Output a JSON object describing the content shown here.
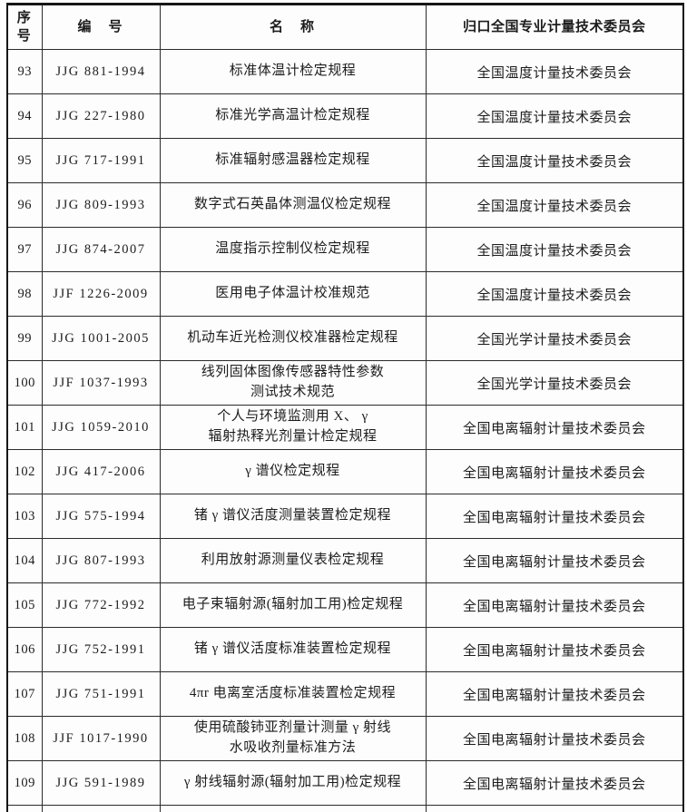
{
  "table": {
    "headers": {
      "serial": "序\n号",
      "code": "编　号",
      "name": "名　称",
      "committee": "归口全国专业计量技术委员会"
    },
    "rows": [
      {
        "no": "93",
        "code": "JJG 881-1994",
        "name": "标准体温计检定规程",
        "committee": "全国温度计量技术委员会"
      },
      {
        "no": "94",
        "code": "JJG 227-1980",
        "name": "标准光学高温计检定规程",
        "committee": "全国温度计量技术委员会"
      },
      {
        "no": "95",
        "code": "JJG 717-1991",
        "name": "标准辐射感温器检定规程",
        "committee": "全国温度计量技术委员会"
      },
      {
        "no": "96",
        "code": "JJG 809-1993",
        "name": "数字式石英晶体测温仪检定规程",
        "committee": "全国温度计量技术委员会"
      },
      {
        "no": "97",
        "code": "JJG 874-2007",
        "name": "温度指示控制仪检定规程",
        "committee": "全国温度计量技术委员会"
      },
      {
        "no": "98",
        "code": "JJF 1226-2009",
        "name": "医用电子体温计校准规范",
        "committee": "全国温度计量技术委员会"
      },
      {
        "no": "99",
        "code": "JJG 1001-2005",
        "name": "机动车近光检测仪校准器检定规程",
        "committee": "全国光学计量技术委员会"
      },
      {
        "no": "100",
        "code": "JJF 1037-1993",
        "name": "线列固体图像传感器特性参数\n测试技术规范",
        "committee": "全国光学计量技术委员会"
      },
      {
        "no": "101",
        "code": "JJG 1059-2010",
        "name": "个人与环境监测用 X、 γ\n辐射热释光剂量计检定规程",
        "committee": "全国电离辐射计量技术委员会"
      },
      {
        "no": "102",
        "code": "JJG 417-2006",
        "name": "γ 谱仪检定规程",
        "committee": "全国电离辐射计量技术委员会"
      },
      {
        "no": "103",
        "code": "JJG 575-1994",
        "name": "锗 γ 谱仪活度测量装置检定规程",
        "committee": "全国电离辐射计量技术委员会"
      },
      {
        "no": "104",
        "code": "JJG 807-1993",
        "name": "利用放射源测量仪表检定规程",
        "committee": "全国电离辐射计量技术委员会"
      },
      {
        "no": "105",
        "code": "JJG 772-1992",
        "name": "电子束辐射源(辐射加工用)检定规程",
        "committee": "全国电离辐射计量技术委员会"
      },
      {
        "no": "106",
        "code": "JJG 752-1991",
        "name": "锗 γ 谱仪活度标准装置检定规程",
        "committee": "全国电离辐射计量技术委员会"
      },
      {
        "no": "107",
        "code": "JJG 751-1991",
        "name": "4πr 电离室活度标准装置检定规程",
        "committee": "全国电离辐射计量技术委员会"
      },
      {
        "no": "108",
        "code": "JJF 1017-1990",
        "name": "使用硫酸铈亚剂量计测量 γ 射线\n水吸收剂量标准方法",
        "committee": "全国电离辐射计量技术委员会"
      },
      {
        "no": "109",
        "code": "JJG 591-1989",
        "name": "γ 射线辐射源(辐射加工用)检定规程",
        "committee": "全国电离辐射计量技术委员会"
      }
    ]
  }
}
